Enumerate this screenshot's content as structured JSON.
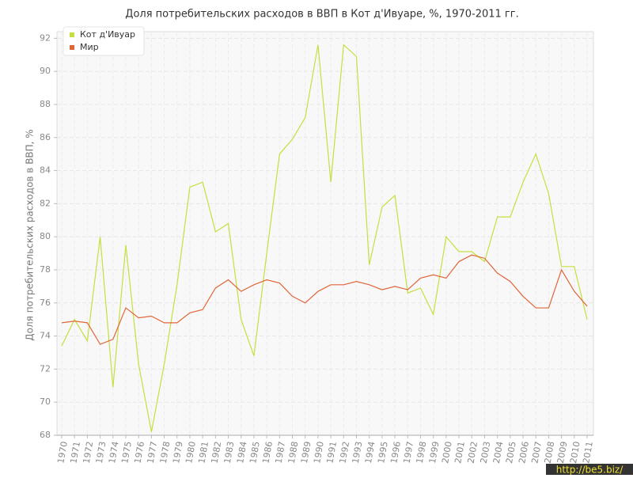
{
  "chart_data": {
    "type": "line",
    "title": "Доля потребительских расходов в ВВП в Кот д'Ивуаре, %, 1970-2011 гг.",
    "ylabel": "Доля потребительских расходов в ВВП, %",
    "watermark": "http://be5.biz/",
    "categories": [
      "1970",
      "1971",
      "1972",
      "1973",
      "1974",
      "1975",
      "1976",
      "1977",
      "1978",
      "1979",
      "1980",
      "1981",
      "1982",
      "1983",
      "1984",
      "1985",
      "1986",
      "1987",
      "1988",
      "1989",
      "1990",
      "1991",
      "1992",
      "1993",
      "1994",
      "1995",
      "1996",
      "1997",
      "1998",
      "1999",
      "2000",
      "2001",
      "2002",
      "2003",
      "2004",
      "2005",
      "2006",
      "2007",
      "2008",
      "2009",
      "2010",
      "2011"
    ],
    "series": [
      {
        "name": "Кот д'Ивуар",
        "color": "#c5df3f",
        "values": [
          73.4,
          75.0,
          73.7,
          80.0,
          70.9,
          79.5,
          72.3,
          68.2,
          72.3,
          77.1,
          83.0,
          83.3,
          80.3,
          80.8,
          75.0,
          72.8,
          79.0,
          85.0,
          85.9,
          87.2,
          91.6,
          83.3,
          91.6,
          90.9,
          78.3,
          81.8,
          82.5,
          76.6,
          76.9,
          75.3,
          80.0,
          79.1,
          79.1,
          78.5,
          81.2,
          81.2,
          83.3,
          85.0,
          82.6,
          78.2,
          78.2,
          75.0
        ]
      },
      {
        "name": "Мир",
        "color": "#e0663a",
        "values": [
          74.8,
          74.9,
          74.8,
          73.5,
          73.8,
          75.7,
          75.1,
          75.2,
          74.8,
          74.8,
          75.4,
          75.6,
          76.9,
          77.4,
          76.7,
          77.1,
          77.4,
          77.2,
          76.4,
          76.0,
          76.7,
          77.1,
          77.1,
          77.3,
          77.1,
          76.8,
          77.0,
          76.8,
          77.5,
          77.7,
          77.5,
          78.5,
          78.9,
          78.7,
          77.8,
          77.3,
          76.4,
          75.7,
          75.7,
          78.0,
          76.7,
          75.8
        ]
      }
    ],
    "ylim": [
      68,
      92.4
    ],
    "yticks": [
      68,
      70,
      72,
      74,
      76,
      78,
      80,
      82,
      84,
      86,
      88,
      90,
      92
    ],
    "grid": true
  }
}
